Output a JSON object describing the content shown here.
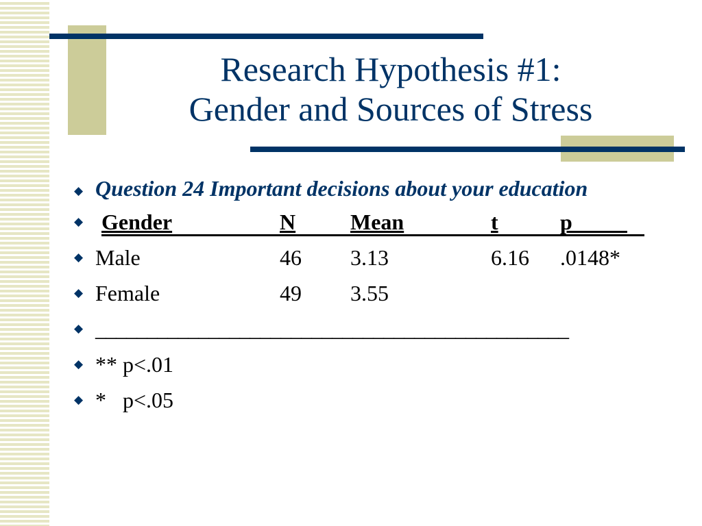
{
  "slide": {
    "title_line1": "Research Hypothesis #1:",
    "title_line2": "Gender and Sources of Stress"
  },
  "question": "Question 24 Important decisions about your education",
  "table": {
    "headers": [
      "Gender",
      "N",
      "Mean",
      "t",
      "p_____"
    ],
    "rows": [
      [
        "Male",
        "46",
        "3.13",
        "6.16",
        ".0148*"
      ],
      [
        "Female",
        "49",
        "3.55",
        "",
        ""
      ]
    ]
  },
  "separator": "______________________________________________",
  "notes": [
    "** p<.01",
    "*   p<.05"
  ],
  "colors": {
    "title": "#003366",
    "accent_block": "#cccc99",
    "stripe": "#e6e6c4"
  },
  "bullet_icon": "diamond-bullet-icon"
}
